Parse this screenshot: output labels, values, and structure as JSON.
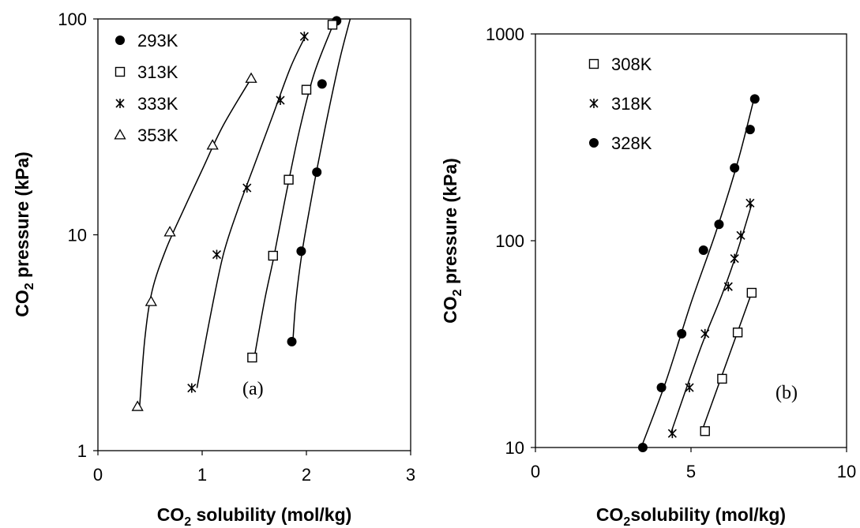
{
  "chart_data": [
    {
      "type": "scatter",
      "panel_label": "(a)",
      "xlabel": {
        "main": "CO",
        "sub": "2",
        "rest": " solubility (mol/kg)"
      },
      "ylabel": {
        "main": "CO",
        "sub": "2",
        "rest": " pressure (kPa)"
      },
      "xlim": [
        0,
        3
      ],
      "ylim": [
        1,
        100
      ],
      "yscale": "log",
      "xticks": [
        "0",
        "1",
        "2",
        "3"
      ],
      "yticks": [
        "1",
        "10",
        "100"
      ],
      "legend_position": "top-left",
      "grid": false,
      "series": [
        {
          "name": "293K",
          "marker": "circle",
          "points": [
            [
              1.86,
              3.2
            ],
            [
              1.95,
              8.4
            ],
            [
              2.1,
              19.5
            ],
            [
              2.15,
              50
            ],
            [
              2.29,
              98
            ]
          ],
          "curve": [
            [
              1.87,
              3.2
            ],
            [
              1.9,
              5.0
            ],
            [
              1.96,
              8.4
            ],
            [
              2.04,
              14
            ],
            [
              2.1,
              20
            ],
            [
              2.2,
              35
            ],
            [
              2.32,
              65
            ],
            [
              2.42,
              100
            ]
          ]
        },
        {
          "name": "313K",
          "marker": "square",
          "points": [
            [
              1.48,
              2.7
            ],
            [
              1.68,
              8.0
            ],
            [
              1.83,
              18
            ],
            [
              2.0,
              47
            ],
            [
              2.25,
              94
            ]
          ],
          "curve": [
            [
              1.5,
              2.7
            ],
            [
              1.6,
              5.0
            ],
            [
              1.69,
              8.0
            ],
            [
              1.8,
              15
            ],
            [
              1.93,
              30
            ],
            [
              2.07,
              55
            ],
            [
              2.24,
              90
            ],
            [
              2.28,
              100
            ]
          ]
        },
        {
          "name": "333K",
          "marker": "asterisk",
          "points": [
            [
              0.9,
              1.95
            ],
            [
              1.14,
              8.1
            ],
            [
              1.43,
              16.5
            ],
            [
              1.75,
              42
            ],
            [
              1.98,
              83
            ]
          ],
          "curve": [
            [
              0.95,
              1.95
            ],
            [
              1.07,
              4.0
            ],
            [
              1.2,
              8.0
            ],
            [
              1.34,
              13
            ],
            [
              1.5,
              21
            ],
            [
              1.68,
              36
            ],
            [
              1.85,
              60
            ],
            [
              2.0,
              85
            ]
          ]
        },
        {
          "name": "353K",
          "marker": "triangle",
          "points": [
            [
              0.38,
              1.6
            ],
            [
              0.51,
              4.9
            ],
            [
              0.69,
              10.3
            ],
            [
              1.1,
              26
            ],
            [
              1.47,
              53
            ]
          ],
          "curve": [
            [
              0.4,
              1.6
            ],
            [
              0.45,
              3.3
            ],
            [
              0.52,
              5.5
            ],
            [
              0.65,
              8.5
            ],
            [
              0.82,
              13
            ],
            [
              1.0,
              20
            ],
            [
              1.2,
              32
            ],
            [
              1.48,
              54
            ]
          ]
        }
      ]
    },
    {
      "type": "scatter",
      "panel_label": "(b)",
      "xlabel": {
        "main": "CO",
        "sub": "2",
        "rest": "solubility (mol/kg)"
      },
      "ylabel": {
        "main": "CO",
        "sub": "2",
        "rest": " pressure (kPa)"
      },
      "xlim": [
        0,
        10
      ],
      "ylim": [
        10,
        1000
      ],
      "yscale": "log",
      "xticks": [
        "0",
        "5",
        "10"
      ],
      "yticks": [
        "10",
        "100",
        "1000"
      ],
      "legend_position": "top-left",
      "grid": false,
      "series": [
        {
          "name": "308K",
          "marker": "square",
          "points": [
            [
              5.45,
              12
            ],
            [
              6.0,
              21.5
            ],
            [
              6.5,
              36
            ],
            [
              6.95,
              56
            ]
          ],
          "curve": [
            [
              5.35,
              12
            ],
            [
              6.95,
              56
            ]
          ]
        },
        {
          "name": "318K",
          "marker": "asterisk",
          "points": [
            [
              4.4,
              11.7
            ],
            [
              4.95,
              19.5
            ],
            [
              5.45,
              35.5
            ],
            [
              6.2,
              60
            ],
            [
              6.4,
              82
            ],
            [
              6.6,
              106
            ],
            [
              6.9,
              152
            ]
          ],
          "curve": [
            [
              4.35,
              11.7
            ],
            [
              5.3,
              30
            ],
            [
              6.0,
              55
            ],
            [
              6.5,
              90
            ],
            [
              6.95,
              150
            ]
          ]
        },
        {
          "name": "328K",
          "marker": "circle",
          "points": [
            [
              3.45,
              10
            ],
            [
              4.05,
              19.5
            ],
            [
              4.7,
              35.5
            ],
            [
              5.4,
              90
            ],
            [
              5.9,
              120
            ],
            [
              6.4,
              225
            ],
            [
              6.9,
              345
            ],
            [
              7.05,
              485
            ]
          ],
          "curve": [
            [
              3.4,
              10
            ],
            [
              4.2,
              21
            ],
            [
              5.0,
              50
            ],
            [
              5.8,
              110
            ],
            [
              6.5,
              240
            ],
            [
              7.0,
              470
            ]
          ]
        }
      ]
    }
  ]
}
